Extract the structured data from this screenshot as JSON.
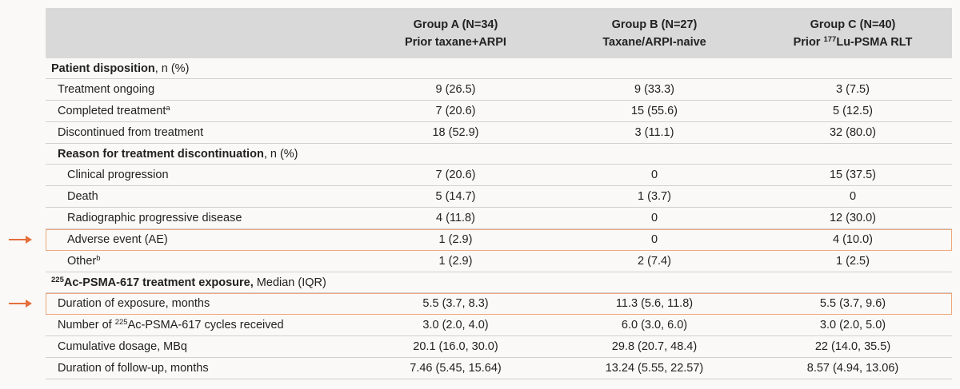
{
  "header": {
    "groups": [
      {
        "title": "Group A (N=34)",
        "subtitle": "Prior taxane+ARPI"
      },
      {
        "title": "Group B (N=27)",
        "subtitle": "Taxane/ARPI-naive"
      },
      {
        "title": "Group C (N=40)",
        "subtitle_pre": "Prior ",
        "subtitle_sup": "177",
        "subtitle_post": "Lu-PSMA RLT"
      }
    ]
  },
  "sections": {
    "disposition": {
      "title": "Patient disposition",
      "suffix": ", n (%)"
    },
    "reason": {
      "title": "Reason for treatment discontinuation",
      "suffix": ", n (%)"
    },
    "exposure": {
      "sup": "225",
      "title": "Ac-PSMA-617 treatment exposure,",
      "suffix": " Median (IQR)"
    }
  },
  "rows": {
    "ongoing": {
      "label": "Treatment ongoing",
      "values": [
        "9 (26.5)",
        "9 (33.3)",
        "3 (7.5)"
      ]
    },
    "completed": {
      "label": "Completed treatment",
      "sup": "a",
      "values": [
        "7 (20.6)",
        "15 (55.6)",
        "5 (12.5)"
      ]
    },
    "discontinued": {
      "label": "Discontinued from treatment",
      "values": [
        "18 (52.9)",
        "3 (11.1)",
        "32 (80.0)"
      ]
    },
    "clinical": {
      "label": "Clinical progression",
      "values": [
        "7 (20.6)",
        "0",
        "15 (37.5)"
      ]
    },
    "death": {
      "label": "Death",
      "values": [
        "5 (14.7)",
        "1 (3.7)",
        "0"
      ]
    },
    "radiographic": {
      "label": "Radiographic progressive disease",
      "values": [
        "4 (11.8)",
        "0",
        "12 (30.0)"
      ]
    },
    "adverse": {
      "label": "Adverse event (AE)",
      "values": [
        "1 (2.9)",
        "0",
        "4 (10.0)"
      ]
    },
    "other": {
      "label": "Other",
      "sup": "b",
      "values": [
        "1 (2.9)",
        "2 (7.4)",
        "1 (2.5)"
      ]
    },
    "duration": {
      "label": "Duration of exposure, months",
      "values": [
        "5.5 (3.7, 8.3)",
        "11.3 (5.6, 11.8)",
        "5.5 (3.7, 9.6)"
      ]
    },
    "cycles": {
      "label_pre": "Number of ",
      "sup": "225",
      "label_post": "Ac-PSMA-617 cycles received",
      "values": [
        "3.0 (2.0, 4.0)",
        "6.0 (3.0, 6.0)",
        "3.0 (2.0, 5.0)"
      ]
    },
    "dosage": {
      "label": "Cumulative dosage, MBq",
      "values": [
        "20.1 (16.0, 30.0)",
        "29.8 (20.7, 48.4)",
        "22 (14.0, 35.5)"
      ]
    },
    "followup": {
      "label": "Duration of follow-up, months",
      "values": [
        "7.46 (5.45, 15.64)",
        "13.24 (5.55, 22.57)",
        "8.57 (4.94, 13.06)"
      ]
    }
  },
  "colors": {
    "header_bg": "#d9d9d9",
    "highlight": "#f0a679",
    "arrow": "#e56e3c"
  }
}
